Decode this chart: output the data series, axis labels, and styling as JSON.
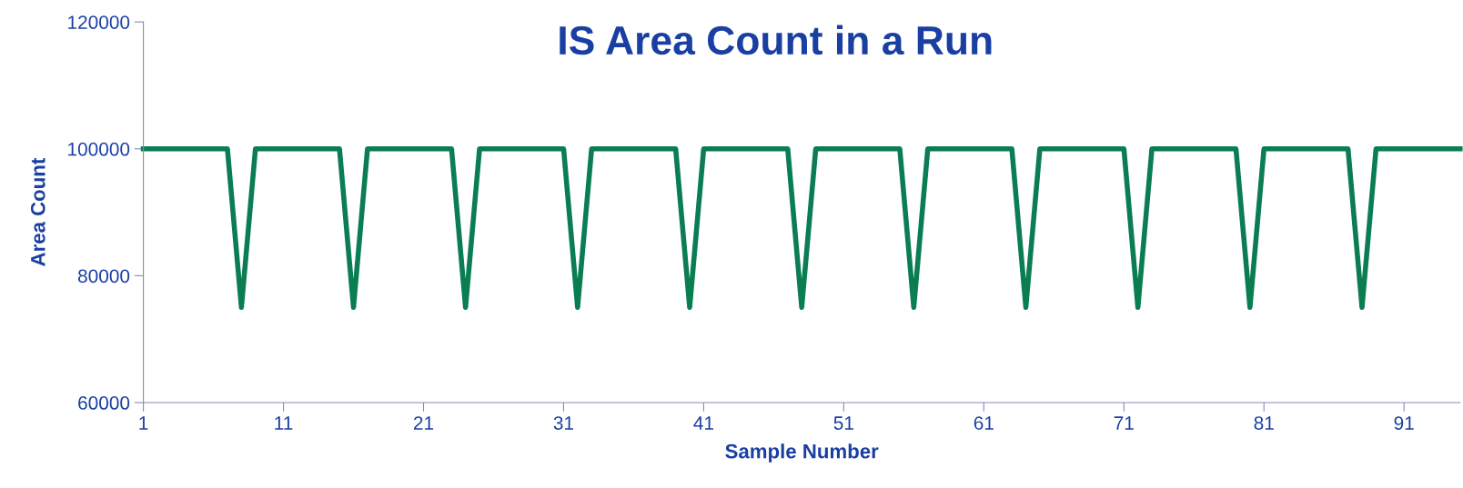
{
  "chart_data": {
    "type": "line",
    "title": "IS Area Count in a Run",
    "xlabel": "Sample Number",
    "ylabel": "Area Count",
    "x": [
      1,
      7,
      8,
      9,
      15,
      16,
      17,
      23,
      24,
      25,
      31,
      32,
      33,
      39,
      40,
      41,
      47,
      48,
      49,
      55,
      56,
      57,
      63,
      64,
      65,
      71,
      72,
      73,
      79,
      80,
      81,
      87,
      88,
      89,
      95
    ],
    "series": [
      {
        "color": "#0b7d52",
        "values": [
          100000,
          100000,
          75000,
          100000,
          100000,
          75000,
          100000,
          100000,
          75000,
          100000,
          100000,
          75000,
          100000,
          100000,
          75000,
          100000,
          100000,
          75000,
          100000,
          100000,
          75000,
          100000,
          100000,
          75000,
          100000,
          100000,
          75000,
          100000,
          100000,
          75000,
          100000,
          100000,
          75000,
          100000,
          100000
        ]
      }
    ],
    "xlim": [
      1,
      95
    ],
    "xticks": [
      1,
      11,
      21,
      31,
      41,
      51,
      61,
      71,
      81,
      91
    ],
    "ylim": [
      60000,
      120000
    ],
    "yticks": [
      60000,
      80000,
      100000,
      120000
    ],
    "grid": false,
    "legend": false,
    "marker": "none",
    "line_style": "solid"
  }
}
